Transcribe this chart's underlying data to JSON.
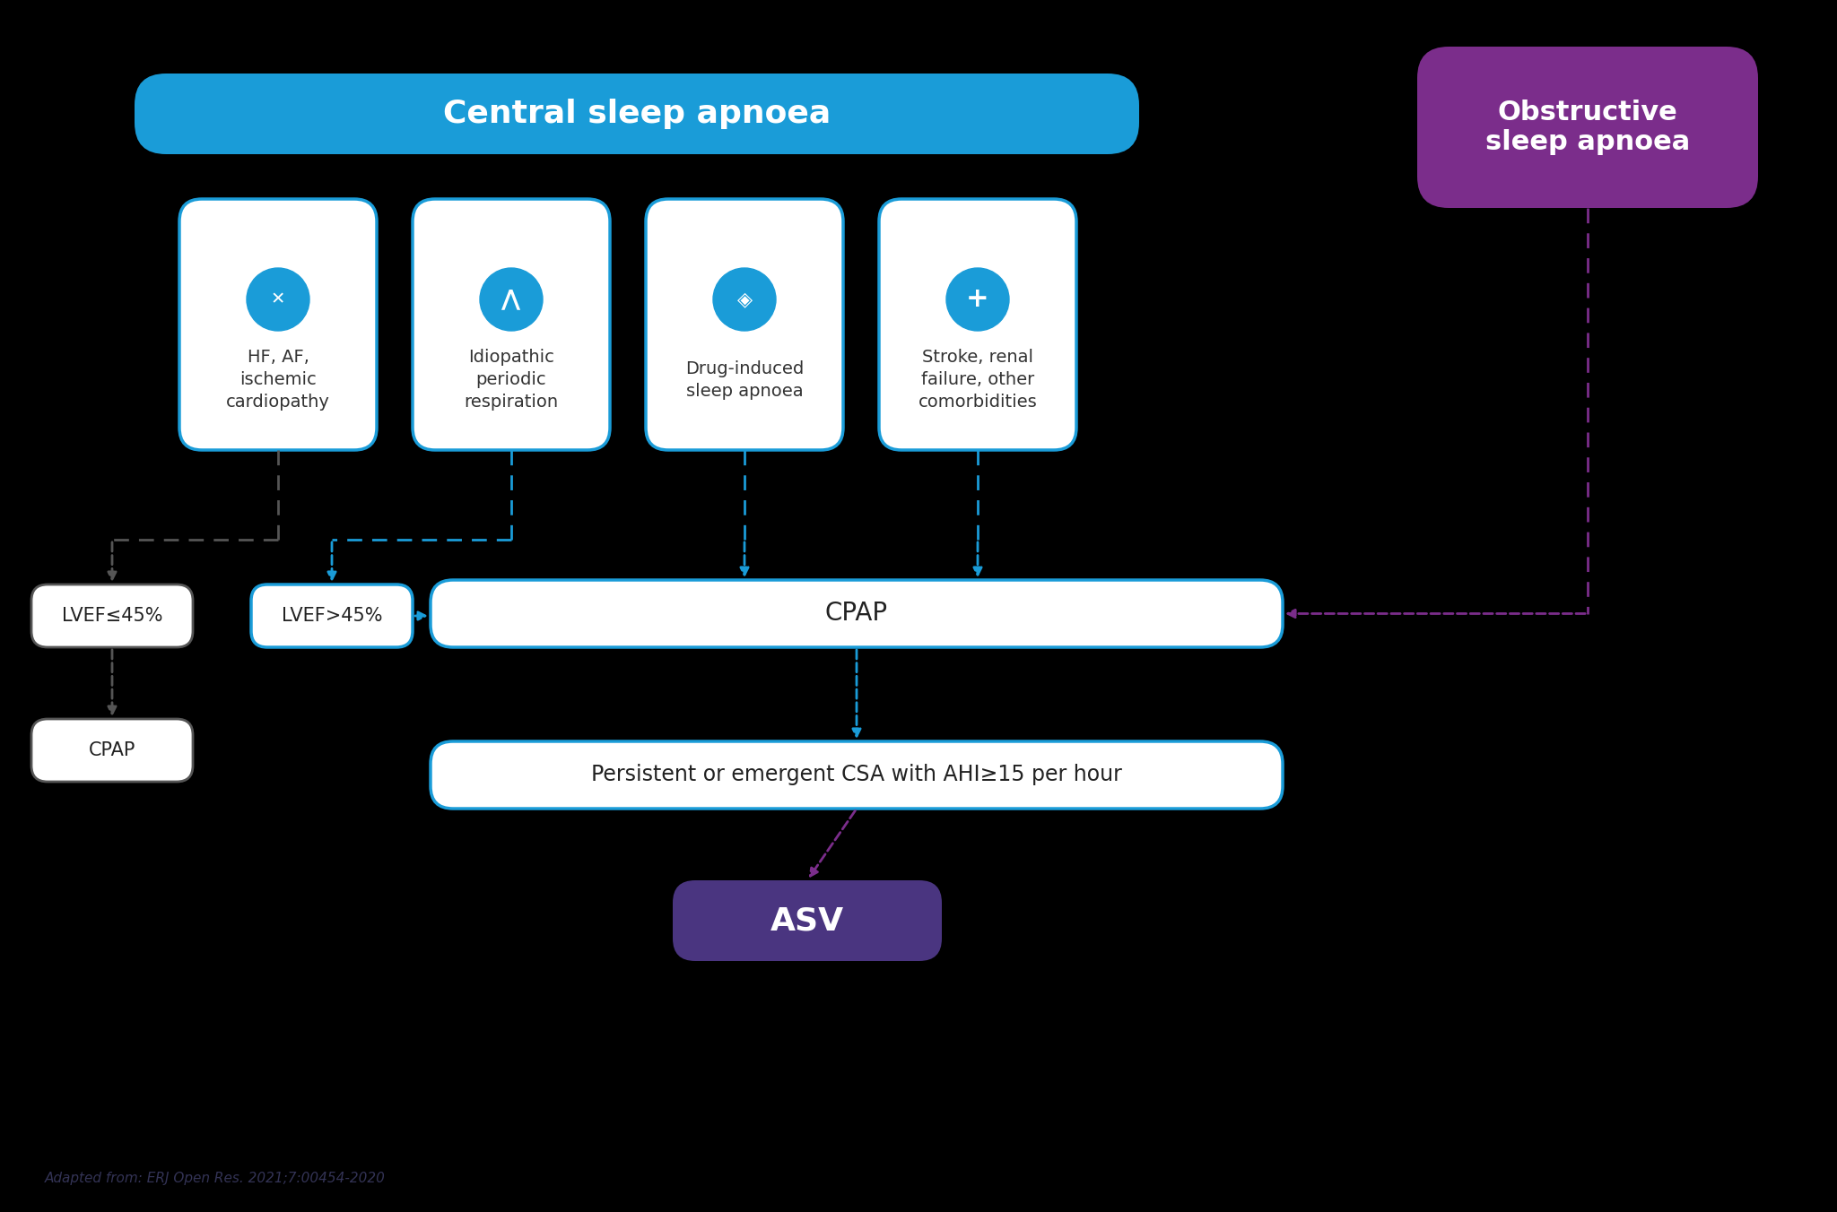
{
  "bg_color": "#000000",
  "title_csa": "Central sleep apnoea",
  "title_osa": "Obstructive\nsleep apnoea",
  "csa_box_color": "#1a9cd8",
  "csa_title_text_color": "#ffffff",
  "osa_box_color": "#7b2d8b",
  "osa_text_color": "#ffffff",
  "card_bg": "#ffffff",
  "card_border": "#1a9cd8",
  "card_labels": [
    "HF, AF,\nischemic\ncardiopathy",
    "Idiopathic\nperiodic\nrespiration",
    "Drug-induced\nsleep apnoea",
    "Stroke, renal\nfailure, other\ncomorbidities"
  ],
  "card_icon_color": "#1a9cd8",
  "lvef_le_label": "LVEF≤45%",
  "lvef_gt_label": "LVEF>45%",
  "cpap_small_label": "CPAP",
  "cpap_large_label": "CPAP",
  "persistent_label": "Persistent or emergent CSA with AHI≥15 per hour",
  "asv_label": "ASV",
  "asv_bg": "#4a3580",
  "asv_text_color": "#ffffff",
  "arrow_blue": "#1a9cd8",
  "arrow_gray": "#555555",
  "arrow_purple": "#7b2d8b",
  "footnote": "Adapted from: ERJ Open Res. 2021;7:00454-2020"
}
